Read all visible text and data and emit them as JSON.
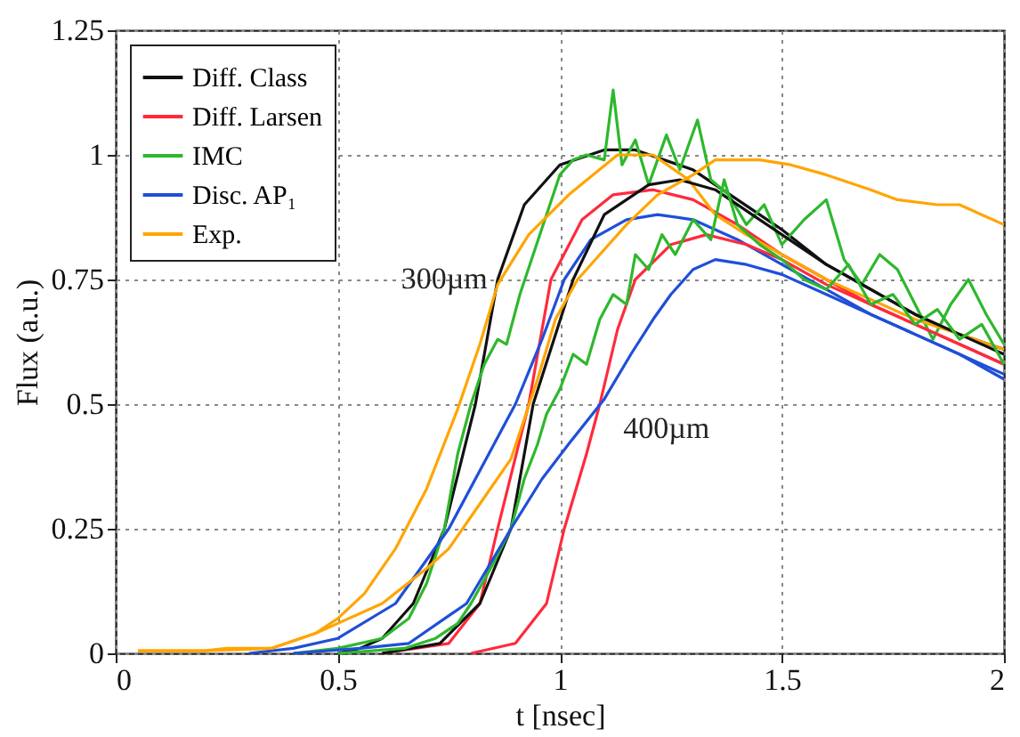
{
  "chart_data": {
    "type": "line",
    "xlabel": "t [nsec]",
    "ylabel": "Flux (a.u.)",
    "xlim": [
      0,
      2
    ],
    "xticks": [
      0,
      0.5,
      1,
      1.5,
      2
    ],
    "ylim": [
      0,
      1.25
    ],
    "yticks": [
      0,
      0.25,
      0.5,
      0.75,
      1,
      1.25
    ],
    "grid": true,
    "legend": "top left",
    "annotations": [
      "300µm",
      "400µm"
    ],
    "series": [
      {
        "name": "Diff. Class",
        "color": "#111111",
        "x": [
          0.5,
          0.55,
          0.6,
          0.67,
          0.74,
          0.81,
          0.86,
          0.92,
          1.0,
          1.1,
          1.17,
          1.3,
          1.4,
          1.5,
          1.6,
          1.7,
          1.8,
          1.9,
          2.0
        ],
        "values": [
          0,
          0.01,
          0.03,
          0.1,
          0.25,
          0.5,
          0.75,
          0.9,
          0.98,
          1.01,
          1.01,
          0.97,
          0.91,
          0.85,
          0.78,
          0.73,
          0.68,
          0.64,
          0.61
        ]
      },
      {
        "name": "Diff. Larsen",
        "color": "#ff2a3c",
        "x": [
          0.6,
          0.75,
          0.82,
          0.86,
          0.93,
          0.98,
          1.05,
          1.12,
          1.21,
          1.3,
          1.4,
          1.5,
          1.6,
          1.7,
          1.8,
          1.9,
          2.0
        ],
        "values": [
          0,
          0.02,
          0.1,
          0.25,
          0.5,
          0.75,
          0.87,
          0.92,
          0.93,
          0.91,
          0.86,
          0.8,
          0.75,
          0.7,
          0.66,
          0.62,
          0.58
        ]
      },
      {
        "name": "IMC",
        "color": "#2db82d",
        "x": [
          0.4,
          0.5,
          0.6,
          0.66,
          0.7,
          0.74,
          0.77,
          0.8,
          0.83,
          0.86,
          0.88,
          0.91,
          0.94,
          0.97,
          1.0,
          1.03,
          1.06,
          1.1,
          1.12,
          1.14,
          1.17,
          1.2,
          1.24,
          1.27,
          1.31,
          1.34,
          1.38,
          1.42,
          1.46,
          1.5,
          1.55,
          1.6,
          1.64,
          1.68,
          1.72,
          1.76,
          1.8,
          1.84,
          1.88,
          1.92,
          1.96,
          2.0
        ],
        "values": [
          0,
          0.01,
          0.03,
          0.07,
          0.14,
          0.25,
          0.4,
          0.5,
          0.58,
          0.63,
          0.62,
          0.72,
          0.8,
          0.88,
          0.96,
          0.99,
          1.0,
          0.99,
          1.13,
          0.98,
          1.03,
          0.94,
          1.04,
          0.97,
          1.07,
          0.95,
          0.92,
          0.86,
          0.9,
          0.82,
          0.87,
          0.91,
          0.79,
          0.74,
          0.8,
          0.77,
          0.7,
          0.63,
          0.7,
          0.75,
          0.68,
          0.62
        ]
      },
      {
        "name": "Disc. AP₁",
        "color": "#1f4fd8",
        "x": [
          0.3,
          0.4,
          0.5,
          0.63,
          0.75,
          0.84,
          0.9,
          0.96,
          1.01,
          1.07,
          1.15,
          1.22,
          1.3,
          1.4,
          1.5,
          1.6,
          1.7,
          1.8,
          1.9,
          2.0
        ],
        "values": [
          0,
          0.01,
          0.03,
          0.1,
          0.25,
          0.4,
          0.5,
          0.63,
          0.75,
          0.83,
          0.87,
          0.88,
          0.87,
          0.83,
          0.78,
          0.73,
          0.68,
          0.64,
          0.6,
          0.56
        ]
      },
      {
        "name": "Exp.",
        "color": "#ffa500",
        "x": [
          0.05,
          0.2,
          0.25,
          0.35,
          0.45,
          0.5,
          0.56,
          0.63,
          0.7,
          0.77,
          0.82,
          0.86,
          0.93,
          1.02,
          1.13,
          1.21,
          1.29,
          1.35,
          1.42,
          1.5,
          1.6,
          1.7,
          1.8,
          1.9,
          2.0
        ],
        "values": [
          0.005,
          0.005,
          0.01,
          0.01,
          0.04,
          0.07,
          0.12,
          0.21,
          0.33,
          0.49,
          0.62,
          0.74,
          0.84,
          0.92,
          1.0,
          1.0,
          0.95,
          0.88,
          0.84,
          0.8,
          0.75,
          0.71,
          0.67,
          0.64,
          0.61
        ]
      },
      {
        "color": "#111111",
        "x": [
          0.6,
          0.73,
          0.82,
          0.89,
          0.94,
          1.03,
          1.1,
          1.2,
          1.27,
          1.35,
          1.45,
          1.5,
          1.6,
          1.7,
          1.8,
          1.9,
          2.0
        ],
        "values": [
          0,
          0.02,
          0.1,
          0.25,
          0.5,
          0.75,
          0.88,
          0.94,
          0.95,
          0.93,
          0.87,
          0.84,
          0.78,
          0.73,
          0.68,
          0.64,
          0.6
        ]
      },
      {
        "color": "#ff2a3c",
        "x": [
          0.8,
          0.9,
          0.97,
          1.01,
          1.06,
          1.09,
          1.13,
          1.17,
          1.25,
          1.33,
          1.42,
          1.5,
          1.6,
          1.7,
          1.8,
          1.9,
          2.0
        ],
        "values": [
          0,
          0.02,
          0.1,
          0.25,
          0.4,
          0.5,
          0.65,
          0.75,
          0.82,
          0.84,
          0.82,
          0.79,
          0.74,
          0.7,
          0.66,
          0.62,
          0.58
        ]
      },
      {
        "color": "#2db82d",
        "x": [
          0.5,
          0.65,
          0.72,
          0.77,
          0.8,
          0.85,
          0.89,
          0.92,
          0.95,
          0.97,
          1.0,
          1.03,
          1.06,
          1.09,
          1.12,
          1.15,
          1.17,
          1.2,
          1.23,
          1.26,
          1.3,
          1.34,
          1.37,
          1.4,
          1.45,
          1.5,
          1.55,
          1.6,
          1.65,
          1.7,
          1.75,
          1.8,
          1.85,
          1.9,
          1.95,
          2.0
        ],
        "values": [
          0,
          0.01,
          0.03,
          0.06,
          0.1,
          0.18,
          0.25,
          0.35,
          0.42,
          0.48,
          0.53,
          0.6,
          0.58,
          0.67,
          0.72,
          0.7,
          0.8,
          0.77,
          0.84,
          0.8,
          0.87,
          0.83,
          0.95,
          0.86,
          0.82,
          0.79,
          0.75,
          0.73,
          0.78,
          0.7,
          0.72,
          0.66,
          0.69,
          0.63,
          0.66,
          0.58
        ]
      },
      {
        "color": "#1f4fd8",
        "x": [
          0.4,
          0.55,
          0.66,
          0.79,
          0.89,
          0.96,
          1.02,
          1.1,
          1.16,
          1.21,
          1.25,
          1.3,
          1.35,
          1.42,
          1.5,
          1.6,
          1.7,
          1.8,
          1.9,
          2.0
        ],
        "values": [
          0,
          0.01,
          0.02,
          0.1,
          0.25,
          0.35,
          0.42,
          0.51,
          0.6,
          0.67,
          0.72,
          0.77,
          0.79,
          0.78,
          0.76,
          0.72,
          0.68,
          0.64,
          0.6,
          0.55
        ]
      },
      {
        "color": "#ffa500",
        "x": [
          0.05,
          0.2,
          0.35,
          0.45,
          0.5,
          0.6,
          0.7,
          0.75,
          0.82,
          0.89,
          0.95,
          0.99,
          1.04,
          1.09,
          1.15,
          1.22,
          1.3,
          1.35,
          1.45,
          1.52,
          1.6,
          1.7,
          1.76,
          1.85,
          1.9,
          1.95,
          2.0
        ],
        "values": [
          0.005,
          0.005,
          0.01,
          0.04,
          0.06,
          0.1,
          0.17,
          0.21,
          0.3,
          0.39,
          0.55,
          0.67,
          0.75,
          0.8,
          0.86,
          0.92,
          0.96,
          0.99,
          0.99,
          0.98,
          0.96,
          0.93,
          0.91,
          0.9,
          0.9,
          0.88,
          0.86
        ]
      }
    ]
  }
}
